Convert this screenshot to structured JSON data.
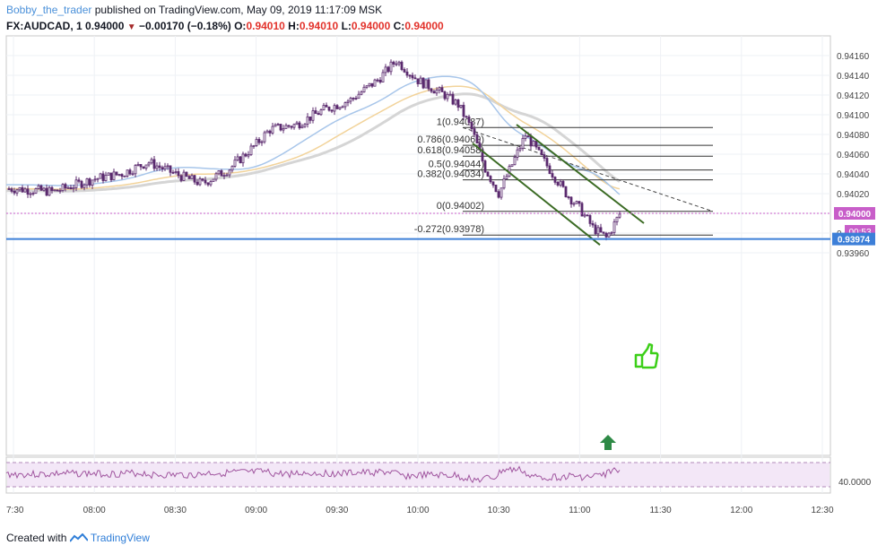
{
  "header": {
    "author": "Bobby_the_trader",
    "published_text": " published on TradingView.com, May 09, 2019 11:17:09 MSK",
    "symbol": "FX:AUDCAD, 1",
    "last": "0.94000",
    "change": "−0.00170 (−0.18%)",
    "o_label": "O:",
    "o": "0.94010",
    "h_label": "H:",
    "h": "0.94010",
    "l_label": "L:",
    "l": "0.94000",
    "c_label": "C:",
    "c": "0.94000"
  },
  "footer": {
    "created_with": "Created with",
    "brand": "TradingView"
  },
  "colors": {
    "candle": "#5b2a6e",
    "ema_blue": "#a8c6ea",
    "ema_orange": "#f2d39a",
    "ema_gray": "#d5d5d5",
    "channel": "#3b6b24",
    "support": "#3d7fd8",
    "price_tag": "#c85ec9",
    "rsi_band": "#f3e7f7",
    "rsi_line": "#a0559f",
    "arrow": "#2e8a46",
    "thumbs": "#3ccf18"
  },
  "chart_data": {
    "type": "candlestick",
    "y_axis_ticks": [
      "0.94160",
      "0.94140",
      "0.94120",
      "0.94100",
      "0.94080",
      "0.94060",
      "0.94040",
      "0.94020",
      "0.94000",
      "0.93980",
      "0.93960"
    ],
    "x_axis_ticks": [
      "7:30",
      "08:00",
      "08:30",
      "09:00",
      "09:30",
      "10:00",
      "10:30",
      "11:00",
      "11:30",
      "12:00",
      "12:30"
    ],
    "current_price": "0.94000",
    "countdown": "00:53",
    "support_level": "0.93974",
    "fib_levels": [
      {
        "label": "1(0.94087)",
        "value": 0.94087
      },
      {
        "label": "0.786(0.94069)",
        "value": 0.94069
      },
      {
        "label": "0.618(0.94058)",
        "value": 0.94058
      },
      {
        "label": "0.5(0.94044)",
        "value": 0.94044
      },
      {
        "label": "0.382(0.94034)",
        "value": 0.94034
      },
      {
        "label": "0(0.94002)",
        "value": 0.94002
      },
      {
        "label": "-0.272(0.93978)",
        "value": 0.93978
      }
    ],
    "close_path": [
      [
        "7:30",
        0.94025
      ],
      [
        "7:45",
        0.94022
      ],
      [
        "8:00",
        0.94035
      ],
      [
        "8:10",
        0.9404
      ],
      [
        "8:20",
        0.94052
      ],
      [
        "8:30",
        0.9404
      ],
      [
        "8:40",
        0.9403
      ],
      [
        "8:50",
        0.94045
      ],
      [
        "9:00",
        0.9407
      ],
      [
        "9:05",
        0.94085
      ],
      [
        "9:15",
        0.9409
      ],
      [
        "9:25",
        0.94105
      ],
      [
        "9:35",
        0.94115
      ],
      [
        "9:45",
        0.94135
      ],
      [
        "9:52",
        0.94155
      ],
      [
        "10:00",
        0.94135
      ],
      [
        "10:10",
        0.9412
      ],
      [
        "10:15",
        0.9411
      ],
      [
        "10:20",
        0.94085
      ],
      [
        "10:25",
        0.94045
      ],
      [
        "10:30",
        0.9402
      ],
      [
        "10:35",
        0.9405
      ],
      [
        "10:40",
        0.9408
      ],
      [
        "10:45",
        0.9406
      ],
      [
        "10:50",
        0.9404
      ],
      [
        "10:55",
        0.9402
      ],
      [
        "11:00",
        0.94005
      ],
      [
        "11:05",
        0.93985
      ],
      [
        "11:10",
        0.93975
      ],
      [
        "11:15",
        0.94
      ]
    ],
    "rsi": {
      "level_label": "40.0000",
      "range": [
        0,
        100
      ]
    }
  }
}
